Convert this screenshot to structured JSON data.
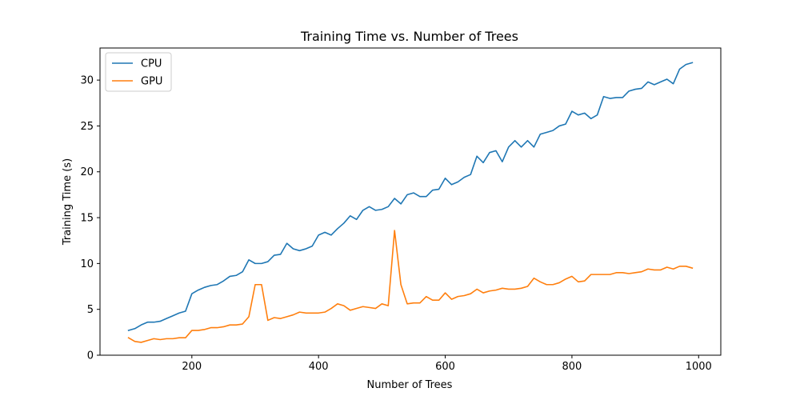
{
  "chart_data": {
    "type": "line",
    "title": "Training Time vs. Number of Trees",
    "xlabel": "Number of Trees",
    "ylabel": "Training Time (s)",
    "xlim": [
      55,
      1035
    ],
    "ylim": [
      0,
      33.5
    ],
    "xticks": [
      200,
      400,
      600,
      800,
      1000
    ],
    "yticks": [
      0,
      5,
      10,
      15,
      20,
      25,
      30
    ],
    "grid": false,
    "legend_position": "upper-left",
    "x": [
      100,
      110,
      120,
      130,
      140,
      150,
      160,
      170,
      180,
      190,
      200,
      210,
      220,
      230,
      240,
      250,
      260,
      270,
      280,
      290,
      300,
      310,
      320,
      330,
      340,
      350,
      360,
      370,
      380,
      390,
      400,
      410,
      420,
      430,
      440,
      450,
      460,
      470,
      480,
      490,
      500,
      510,
      520,
      530,
      540,
      550,
      560,
      570,
      580,
      590,
      600,
      610,
      620,
      630,
      640,
      650,
      660,
      670,
      680,
      690,
      700,
      710,
      720,
      730,
      740,
      750,
      760,
      770,
      780,
      790,
      800,
      810,
      820,
      830,
      840,
      850,
      860,
      870,
      880,
      890,
      900,
      910,
      920,
      930,
      940,
      950,
      960,
      970,
      980,
      990
    ],
    "series": [
      {
        "name": "CPU",
        "color": "#1f77b4",
        "values": [
          2.7,
          2.9,
          3.3,
          3.6,
          3.6,
          3.7,
          4.0,
          4.3,
          4.6,
          4.8,
          6.7,
          7.1,
          7.4,
          7.6,
          7.7,
          8.1,
          8.6,
          8.7,
          9.1,
          10.4,
          10.0,
          10.0,
          10.2,
          10.9,
          11.0,
          12.2,
          11.6,
          11.4,
          11.6,
          11.9,
          13.1,
          13.4,
          13.1,
          13.8,
          14.4,
          15.2,
          14.8,
          15.8,
          16.2,
          15.8,
          15.9,
          16.2,
          17.1,
          16.5,
          17.5,
          17.7,
          17.3,
          17.3,
          18.0,
          18.1,
          19.3,
          18.6,
          18.9,
          19.4,
          19.7,
          21.7,
          21.0,
          22.1,
          22.3,
          21.1,
          22.7,
          23.4,
          22.7,
          23.4,
          22.7,
          24.1,
          24.3,
          24.5,
          25.0,
          25.2,
          26.6,
          26.2,
          26.4,
          25.8,
          26.2,
          28.2,
          28.0,
          28.1,
          28.1,
          28.8,
          29.0,
          29.1,
          29.8,
          29.5,
          29.8,
          30.1,
          29.6,
          31.2,
          31.7,
          31.9
        ]
      },
      {
        "name": "GPU",
        "color": "#ff7f0e",
        "values": [
          1.9,
          1.5,
          1.4,
          1.6,
          1.8,
          1.7,
          1.8,
          1.8,
          1.9,
          1.9,
          2.7,
          2.7,
          2.8,
          3.0,
          3.0,
          3.1,
          3.3,
          3.3,
          3.4,
          4.2,
          7.7,
          7.7,
          3.8,
          4.1,
          4.0,
          4.2,
          4.4,
          4.7,
          4.6,
          4.6,
          4.6,
          4.7,
          5.1,
          5.6,
          5.4,
          4.9,
          5.1,
          5.3,
          5.2,
          5.1,
          5.6,
          5.4,
          13.6,
          7.7,
          5.6,
          5.7,
          5.7,
          6.4,
          6.0,
          6.0,
          6.8,
          6.1,
          6.4,
          6.5,
          6.7,
          7.2,
          6.8,
          7.0,
          7.1,
          7.3,
          7.2,
          7.2,
          7.3,
          7.5,
          8.4,
          8.0,
          7.7,
          7.7,
          7.9,
          8.3,
          8.6,
          8.0,
          8.1,
          8.8,
          8.8,
          8.8,
          8.8,
          9.0,
          9.0,
          8.9,
          9.0,
          9.1,
          9.4,
          9.3,
          9.3,
          9.6,
          9.4,
          9.7,
          9.7,
          9.5
        ]
      }
    ]
  }
}
